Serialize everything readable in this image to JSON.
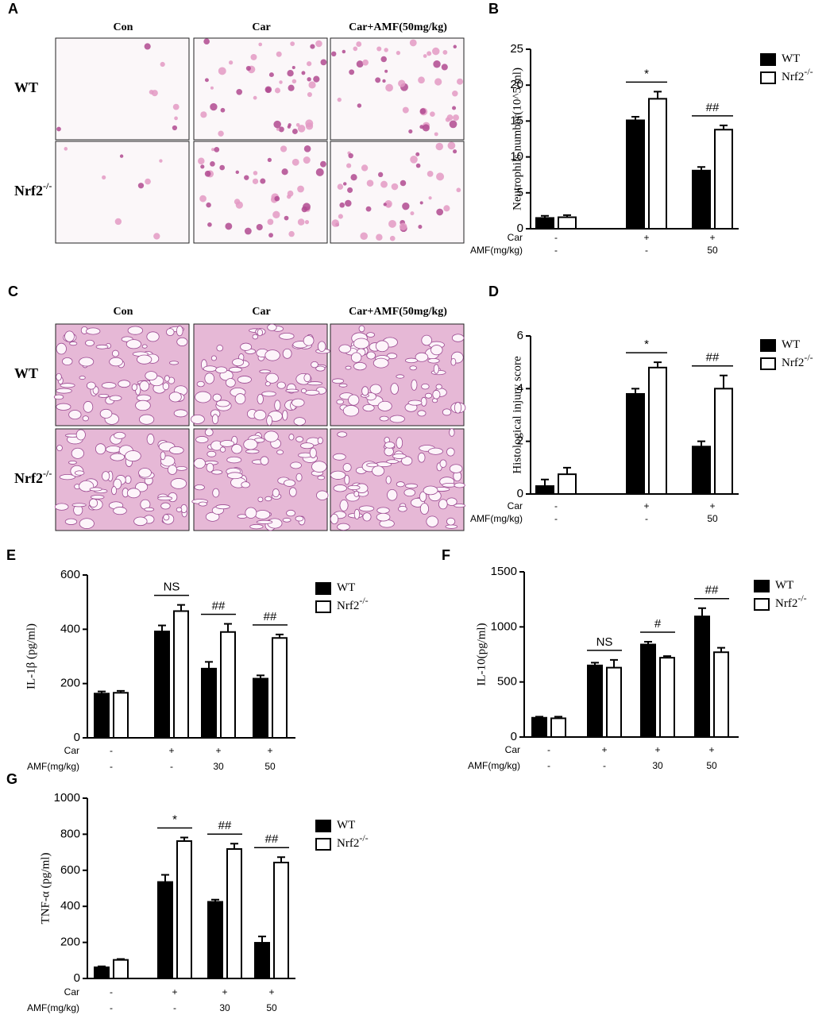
{
  "micrographs": [
    {
      "panel": "A",
      "columns": [
        "Con",
        "Car",
        "Car+AMF(50mg/kg)"
      ],
      "rows": [
        {
          "name": "WT"
        },
        {
          "name": "Nrf2",
          "name_sup": "-/-"
        }
      ]
    },
    {
      "panel": "C",
      "columns": [
        "Con",
        "Car",
        "Car+AMF(50mg/kg)"
      ],
      "rows": [
        {
          "name": "WT"
        },
        {
          "name": "Nrf2",
          "name_sup": "-/-"
        }
      ]
    }
  ],
  "chart_data": [
    {
      "panel": "B",
      "type": "bar",
      "ylabel": "Neutrophils number(10^5/ml)",
      "ylim": [
        0,
        25
      ],
      "yticks": [
        0,
        5,
        10,
        15,
        20,
        25
      ],
      "treatments": [
        {
          "label": "Car",
          "values": [
            "-",
            "+",
            "+"
          ]
        },
        {
          "label": "AMF(mg/kg)",
          "values": [
            "-",
            "-",
            "50"
          ]
        }
      ],
      "significance": [
        null,
        "*",
        "##"
      ],
      "series": [
        {
          "name": "WT",
          "color": "#000000",
          "values": [
            1.5,
            15.1,
            8.1
          ],
          "errors": [
            0.3,
            0.5,
            0.5
          ]
        },
        {
          "name": "Nrf2",
          "name_sup": "-/-",
          "color": "#ffffff",
          "values": [
            1.6,
            18.1,
            13.8
          ],
          "errors": [
            0.3,
            1.0,
            0.6
          ]
        }
      ]
    },
    {
      "panel": "D",
      "type": "bar",
      "ylabel": "Histological injury score",
      "ylim": [
        0,
        6
      ],
      "yticks": [
        0,
        2,
        4,
        6
      ],
      "treatments": [
        {
          "label": "Car",
          "values": [
            "-",
            "+",
            "+"
          ]
        },
        {
          "label": "AMF(mg/kg)",
          "values": [
            "-",
            "-",
            "50"
          ]
        }
      ],
      "significance": [
        null,
        "*",
        "##"
      ],
      "series": [
        {
          "name": "WT",
          "color": "#000000",
          "values": [
            0.3,
            3.8,
            1.8
          ],
          "errors": [
            0.25,
            0.2,
            0.2
          ]
        },
        {
          "name": "Nrf2",
          "name_sup": "-/-",
          "color": "#ffffff",
          "values": [
            0.75,
            4.8,
            4.0
          ],
          "errors": [
            0.25,
            0.2,
            0.5
          ]
        }
      ]
    },
    {
      "panel": "E",
      "type": "bar",
      "ylabel": "IL-1β (pg/ml)",
      "ylim": [
        0,
        600
      ],
      "yticks": [
        0,
        200,
        400,
        600
      ],
      "treatments": [
        {
          "label": "Car",
          "values": [
            "-",
            "+",
            "+",
            "+"
          ]
        },
        {
          "label": "AMF(mg/kg)",
          "values": [
            "-",
            "-",
            "30",
            "50"
          ]
        }
      ],
      "significance": [
        null,
        "NS",
        "##",
        "##"
      ],
      "series": [
        {
          "name": "WT",
          "color": "#000000",
          "values": [
            163,
            392,
            255,
            218
          ],
          "errors": [
            8,
            22,
            25,
            12
          ]
        },
        {
          "name": "Nrf2",
          "name_sup": "-/-",
          "color": "#ffffff",
          "values": [
            166,
            467,
            390,
            368
          ],
          "errors": [
            7,
            23,
            30,
            13
          ]
        }
      ]
    },
    {
      "panel": "F",
      "type": "bar",
      "ylabel": "IL-10(pg/ml)",
      "ylim": [
        0,
        1500
      ],
      "yticks": [
        0,
        500,
        1000,
        1500
      ],
      "treatments": [
        {
          "label": "Car",
          "values": [
            "-",
            "+",
            "+",
            "+"
          ]
        },
        {
          "label": "AMF(mg/kg)",
          "values": [
            "-",
            "-",
            "30",
            "50"
          ]
        }
      ],
      "significance": [
        null,
        "NS",
        "#",
        "##"
      ],
      "series": [
        {
          "name": "WT",
          "color": "#000000",
          "values": [
            175,
            650,
            840,
            1095
          ],
          "errors": [
            10,
            25,
            25,
            75
          ]
        },
        {
          "name": "Nrf2",
          "name_sup": "-/-",
          "color": "#ffffff",
          "values": [
            170,
            630,
            720,
            770
          ],
          "errors": [
            15,
            70,
            15,
            40
          ]
        }
      ]
    },
    {
      "panel": "G",
      "type": "bar",
      "ylabel": "TNF-α (pg/ml)",
      "ylim": [
        0,
        1000
      ],
      "yticks": [
        0,
        200,
        400,
        600,
        800,
        1000
      ],
      "treatments": [
        {
          "label": "Car",
          "values": [
            "-",
            "+",
            "+",
            "+"
          ]
        },
        {
          "label": "AMF(mg/kg)",
          "values": [
            "-",
            "-",
            "30",
            "50"
          ]
        }
      ],
      "significance": [
        null,
        "*",
        "##",
        "##"
      ],
      "series": [
        {
          "name": "WT",
          "color": "#000000",
          "values": [
            62,
            535,
            425,
            198
          ],
          "errors": [
            5,
            40,
            12,
            35
          ]
        },
        {
          "name": "Nrf2",
          "name_sup": "-/-",
          "color": "#ffffff",
          "values": [
            103,
            762,
            718,
            643
          ],
          "errors": [
            5,
            20,
            30,
            30
          ]
        }
      ]
    }
  ]
}
